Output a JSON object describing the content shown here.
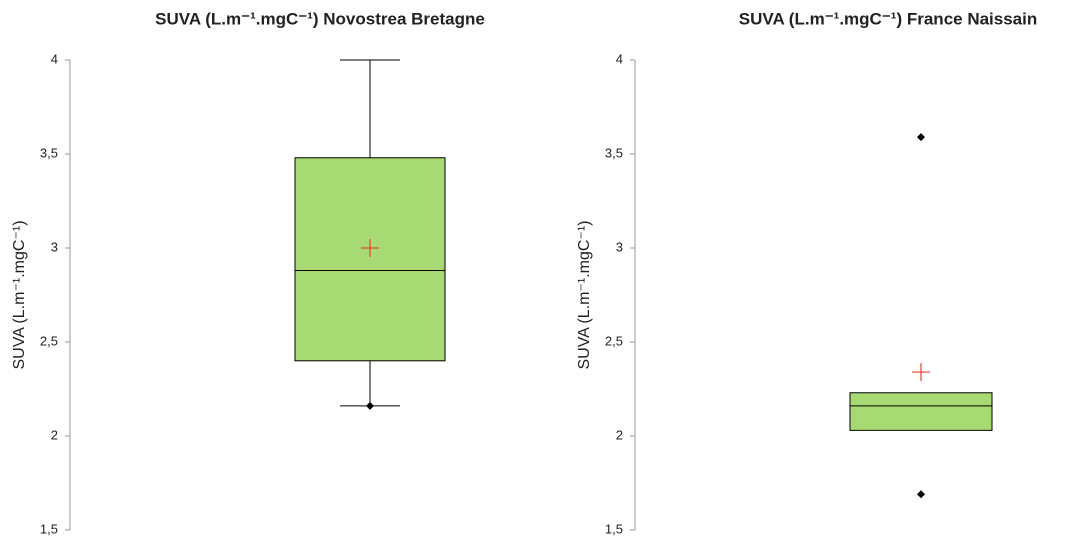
{
  "chart_data": [
    {
      "type": "box",
      "title": "SUVA (L.m⁻¹.mgC⁻¹) Novostrea Bretagne",
      "y_label": "SUVA (L.m⁻¹.mgC⁻¹)",
      "ylim": [
        1.5,
        4
      ],
      "yticks": [
        {
          "value": 1.5,
          "label": "1,5"
        },
        2,
        {
          "value": 2.5,
          "label": "2,5"
        },
        3,
        {
          "value": 3.5,
          "label": "3,5"
        },
        4
      ],
      "color": "#a8da74",
      "mean_color": "#e8442a",
      "boxes": [
        {
          "whisker_low": 2.16,
          "q1": 2.4,
          "median": 2.88,
          "q3": 3.48,
          "whisker_high": 4.0,
          "mean": 3.0,
          "points": [
            2.16
          ]
        }
      ]
    },
    {
      "type": "box",
      "title": "SUVA (L.m⁻¹.mgC⁻¹) France Naissain",
      "y_label": "SUVA (L.m⁻¹.mgC⁻¹)",
      "ylim": [
        1.5,
        4
      ],
      "yticks": [
        {
          "value": 1.5,
          "label": "1,5"
        },
        2,
        {
          "value": 2.5,
          "label": "2,5"
        },
        3,
        {
          "value": 3.5,
          "label": "3,5"
        },
        4
      ],
      "color": "#a8da74",
      "mean_color": "#e8442a",
      "boxes": [
        {
          "whisker_low": 2.03,
          "q1": 2.03,
          "median": 2.16,
          "q3": 2.23,
          "whisker_high": 2.23,
          "mean": 2.34,
          "points": [
            3.59,
            1.69
          ]
        }
      ]
    }
  ]
}
